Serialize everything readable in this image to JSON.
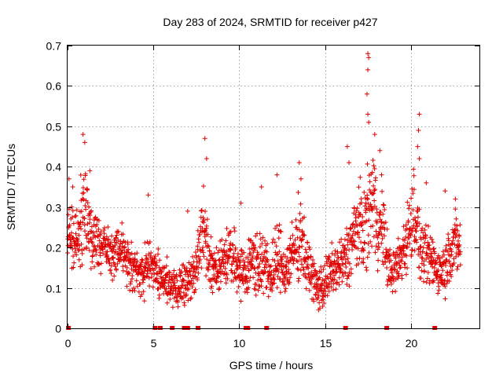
{
  "chart_data": {
    "type": "scatter",
    "title": "Day 283 of 2024, SRMTID for receiver p427",
    "xlabel": "GPS time / hours",
    "ylabel": "SRMTID / TECUs",
    "xlim": [
      0,
      24
    ],
    "ylim": [
      0,
      0.7
    ],
    "xticks": [
      0,
      5,
      10,
      15,
      20
    ],
    "xtick_labels": [
      "0",
      "5",
      "10",
      "15",
      "20"
    ],
    "yticks": [
      0,
      0.1,
      0.2,
      0.3,
      0.4,
      0.5,
      0.6,
      0.7
    ],
    "ytick_labels": [
      "0",
      "0.1",
      "0.2",
      "0.3",
      "0.4",
      "0.5",
      "0.6",
      "0.7"
    ],
    "grid": true,
    "marker": "plus",
    "color": "#e00000",
    "series": [
      {
        "name": "SRMTID",
        "profile": {
          "x": [
            0.0,
            0.2,
            0.5,
            0.8,
            1.0,
            1.3,
            1.6,
            2.0,
            2.3,
            2.6,
            3.0,
            3.3,
            3.6,
            4.0,
            4.3,
            4.6,
            4.9,
            5.2,
            5.5,
            5.8,
            6.1,
            6.4,
            6.7,
            7.0,
            7.3,
            7.6,
            7.9,
            8.2,
            8.4,
            8.7,
            9.0,
            9.3,
            9.6,
            10.0,
            10.3,
            10.6,
            10.9,
            11.2,
            11.5,
            11.8,
            12.1,
            12.4,
            12.7,
            13.0,
            13.3,
            13.6,
            13.9,
            14.2,
            14.5,
            14.8,
            15.1,
            15.4,
            15.7,
            16.0,
            16.3,
            16.6,
            16.9,
            17.2,
            17.5,
            17.8,
            18.1,
            18.4,
            18.7,
            19.0,
            19.3,
            19.6,
            19.9,
            20.2,
            20.5,
            20.8,
            21.1,
            21.4,
            21.7,
            22.0,
            22.3,
            22.6,
            22.9
          ],
          "mean": [
            0.26,
            0.22,
            0.2,
            0.26,
            0.3,
            0.24,
            0.22,
            0.2,
            0.19,
            0.19,
            0.2,
            0.18,
            0.16,
            0.14,
            0.12,
            0.17,
            0.16,
            0.14,
            0.13,
            0.11,
            0.1,
            0.09,
            0.12,
            0.11,
            0.13,
            0.17,
            0.26,
            0.18,
            0.15,
            0.13,
            0.17,
            0.18,
            0.17,
            0.15,
            0.14,
            0.16,
            0.17,
            0.16,
            0.15,
            0.13,
            0.16,
            0.17,
            0.14,
            0.17,
            0.2,
            0.24,
            0.16,
            0.14,
            0.1,
            0.1,
            0.12,
            0.14,
            0.15,
            0.16,
            0.18,
            0.22,
            0.25,
            0.24,
            0.27,
            0.33,
            0.25,
            0.24,
            0.15,
            0.14,
            0.16,
            0.2,
            0.24,
            0.3,
            0.2,
            0.18,
            0.17,
            0.16,
            0.14,
            0.15,
            0.2,
            0.21,
            0.2
          ],
          "spread": [
            0.07,
            0.07,
            0.07,
            0.1,
            0.11,
            0.08,
            0.07,
            0.06,
            0.05,
            0.05,
            0.05,
            0.05,
            0.05,
            0.05,
            0.05,
            0.06,
            0.05,
            0.05,
            0.05,
            0.05,
            0.04,
            0.04,
            0.05,
            0.05,
            0.05,
            0.06,
            0.1,
            0.07,
            0.06,
            0.05,
            0.06,
            0.06,
            0.06,
            0.06,
            0.05,
            0.06,
            0.07,
            0.07,
            0.06,
            0.06,
            0.07,
            0.08,
            0.06,
            0.07,
            0.08,
            0.09,
            0.06,
            0.05,
            0.05,
            0.05,
            0.05,
            0.06,
            0.06,
            0.06,
            0.07,
            0.09,
            0.1,
            0.09,
            0.1,
            0.12,
            0.09,
            0.08,
            0.06,
            0.05,
            0.06,
            0.07,
            0.08,
            0.1,
            0.07,
            0.07,
            0.06,
            0.06,
            0.05,
            0.06,
            0.07,
            0.07,
            0.07
          ]
        },
        "peaks": [
          {
            "x": 0.08,
            "y": 0.37
          },
          {
            "x": 0.3,
            "y": 0.35
          },
          {
            "x": 0.9,
            "y": 0.48
          },
          {
            "x": 1.0,
            "y": 0.46
          },
          {
            "x": 1.3,
            "y": 0.39
          },
          {
            "x": 4.7,
            "y": 0.33
          },
          {
            "x": 7.0,
            "y": 0.29
          },
          {
            "x": 8.0,
            "y": 0.47
          },
          {
            "x": 8.1,
            "y": 0.42
          },
          {
            "x": 10.1,
            "y": 0.31
          },
          {
            "x": 11.3,
            "y": 0.35
          },
          {
            "x": 12.2,
            "y": 0.38
          },
          {
            "x": 13.5,
            "y": 0.41
          },
          {
            "x": 13.6,
            "y": 0.37
          },
          {
            "x": 16.3,
            "y": 0.45
          },
          {
            "x": 16.4,
            "y": 0.41
          },
          {
            "x": 17.5,
            "y": 0.68
          },
          {
            "x": 17.55,
            "y": 0.67
          },
          {
            "x": 17.5,
            "y": 0.64
          },
          {
            "x": 17.45,
            "y": 0.58
          },
          {
            "x": 17.5,
            "y": 0.53
          },
          {
            "x": 17.55,
            "y": 0.51
          },
          {
            "x": 17.9,
            "y": 0.48
          },
          {
            "x": 18.2,
            "y": 0.44
          },
          {
            "x": 18.3,
            "y": 0.38
          },
          {
            "x": 20.5,
            "y": 0.53
          },
          {
            "x": 20.45,
            "y": 0.49
          },
          {
            "x": 20.4,
            "y": 0.45
          },
          {
            "x": 20.5,
            "y": 0.42
          },
          {
            "x": 20.9,
            "y": 0.36
          },
          {
            "x": 22.0,
            "y": 0.34
          },
          {
            "x": 22.6,
            "y": 0.32
          }
        ],
        "zero_values_x": [
          0.05,
          5.1,
          5.4,
          6.1,
          6.8,
          6.9,
          7.0,
          7.6,
          10.4,
          10.5,
          11.6,
          16.2,
          18.6,
          21.4
        ]
      }
    ]
  }
}
